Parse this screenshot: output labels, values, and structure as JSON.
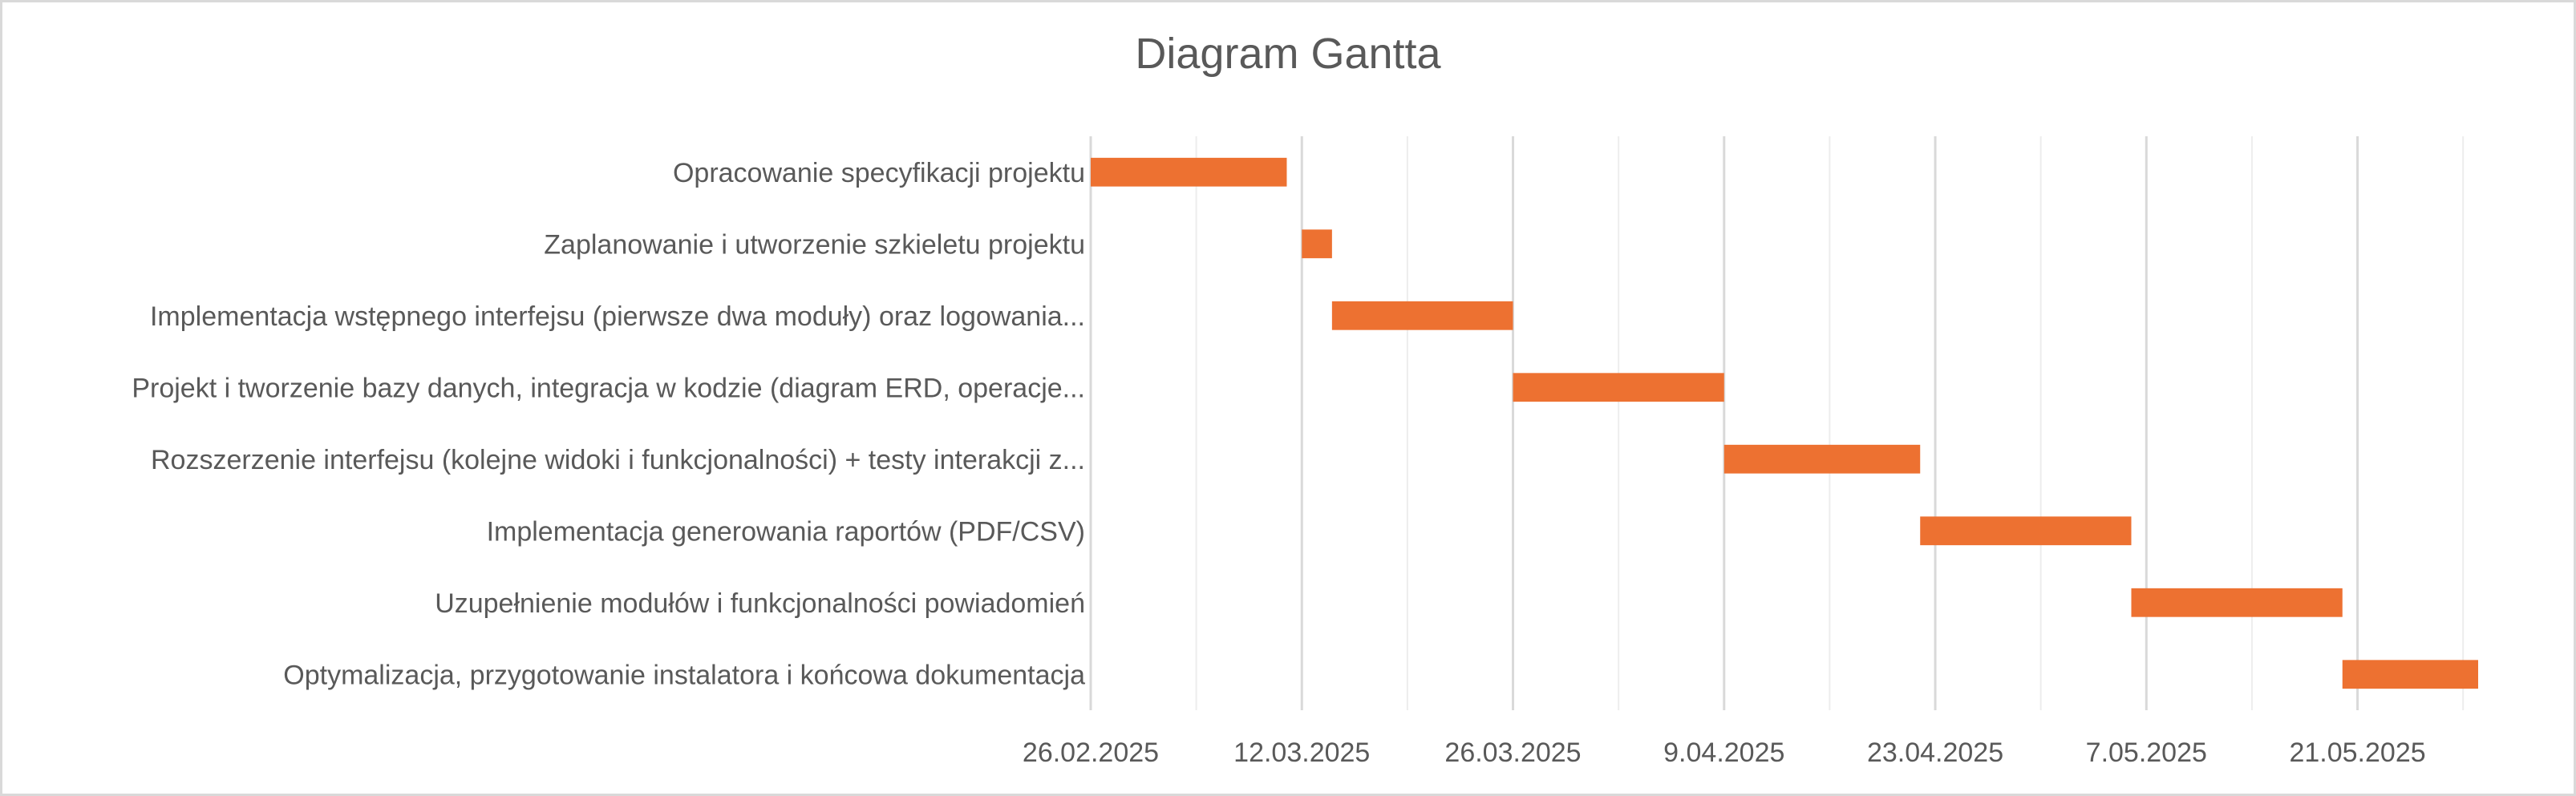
{
  "chart_data": {
    "type": "bar",
    "orientation": "horizontal",
    "variant": "gantt",
    "title": "Diagram Gantta",
    "categories": [
      "Opracowanie specyfikacji projektu",
      "Zaplanowanie i utworzenie szkieletu projektu",
      "Implementacja wstępnego interfejsu (pierwsze dwa moduły) oraz logowania...",
      "Projekt i tworzenie bazy danych, integracja w kodzie (diagram ERD, operacje...",
      "Rozszerzenie interfejsu (kolejne widoki i funkcjonalności) + testy interakcji z...",
      "Implementacja generowania raportów (PDF/CSV)",
      "Uzupełnienie modułów i funkcjonalności powiadomień",
      "Optymalizacja, przygotowanie instalatora i końcowa dokumentacja"
    ],
    "tasks": [
      {
        "start": "2025-02-26",
        "end": "2025-03-11"
      },
      {
        "start": "2025-03-12",
        "end": "2025-03-14"
      },
      {
        "start": "2025-03-14",
        "end": "2025-03-26"
      },
      {
        "start": "2025-03-26",
        "end": "2025-04-09"
      },
      {
        "start": "2025-04-09",
        "end": "2025-04-22"
      },
      {
        "start": "2025-04-22",
        "end": "2025-05-06"
      },
      {
        "start": "2025-05-06",
        "end": "2025-05-20"
      },
      {
        "start": "2025-05-20",
        "end": "2025-05-29"
      }
    ],
    "x_ticks": [
      {
        "date": "2025-02-26",
        "label": "26.02.2025"
      },
      {
        "date": "2025-03-12",
        "label": "12.03.2025"
      },
      {
        "date": "2025-03-26",
        "label": "26.03.2025"
      },
      {
        "date": "2025-04-09",
        "label": "9.04.2025"
      },
      {
        "date": "2025-04-23",
        "label": "23.04.2025"
      },
      {
        "date": "2025-05-07",
        "label": "7.05.2025"
      },
      {
        "date": "2025-05-21",
        "label": "21.05.2025"
      }
    ],
    "xlim": [
      "2025-02-26",
      "2025-05-29"
    ],
    "minor_grid_step_days": 7,
    "grid": true,
    "legend": "none",
    "bar_color": "#ED7131",
    "major_grid_color": "#D9D9D9",
    "minor_grid_color": "#EDEDED",
    "text_color": "#595959"
  }
}
